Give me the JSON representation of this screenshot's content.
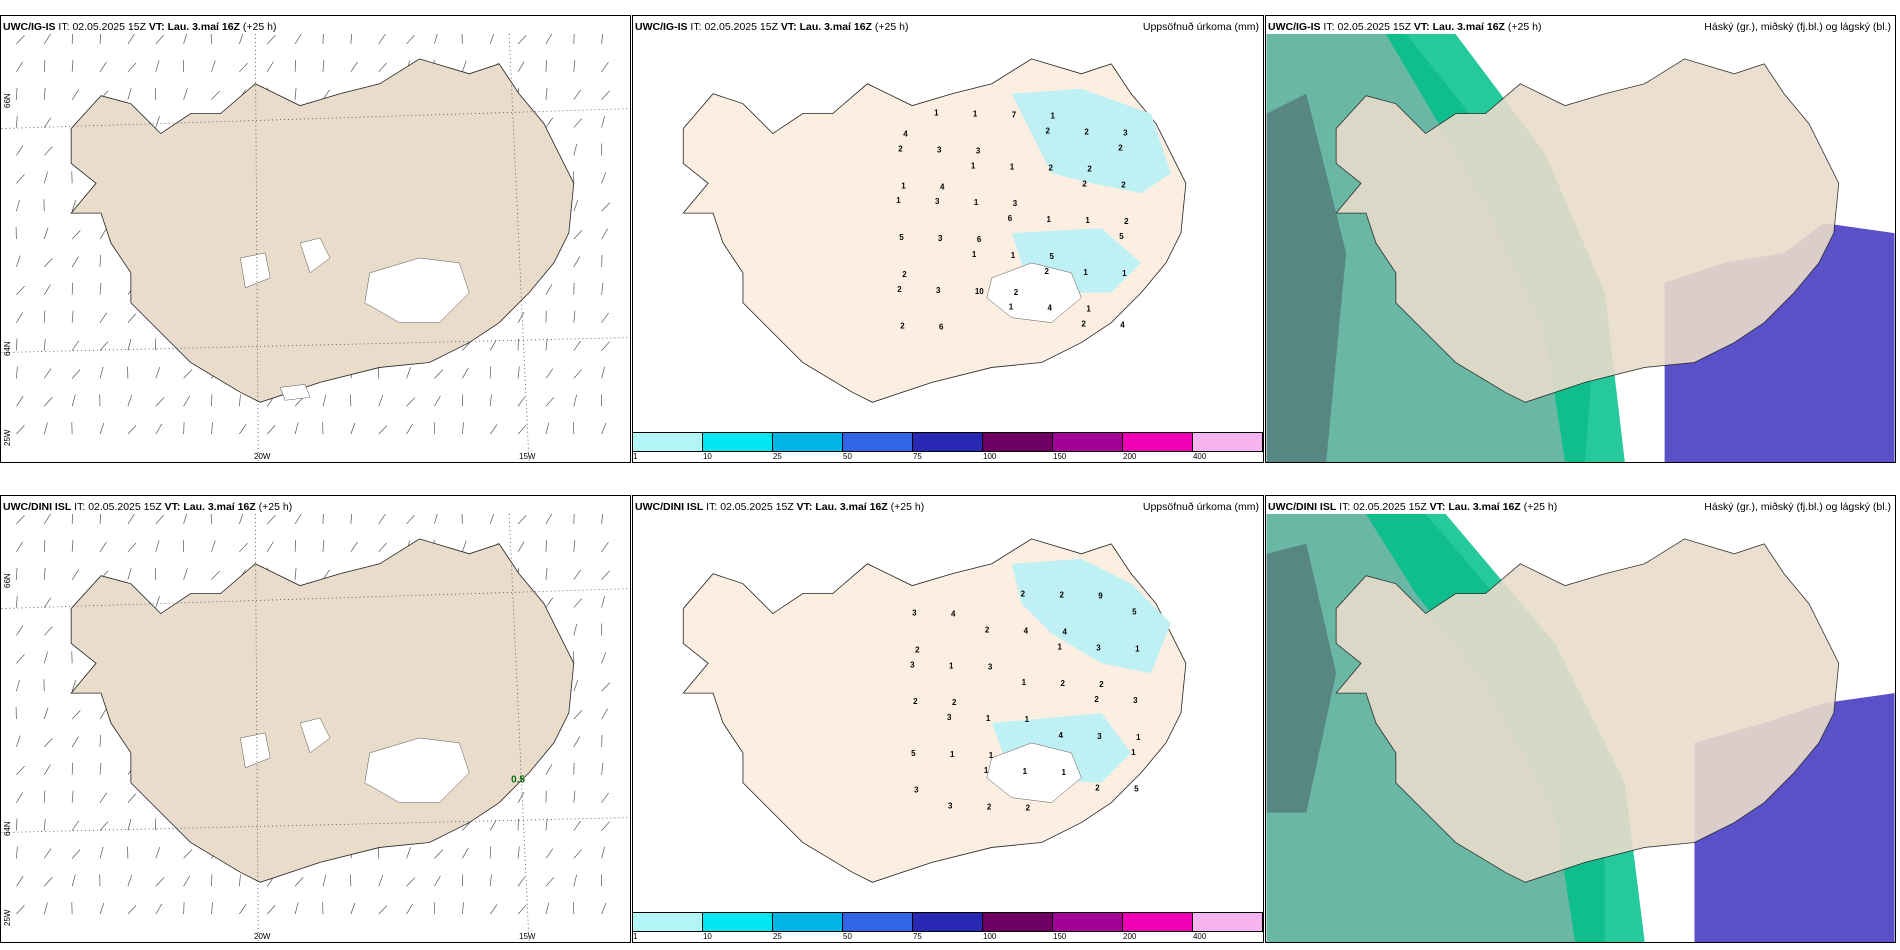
{
  "panels": {
    "top_left": {
      "model": "UWC/IG-IS",
      "it_label": "IT:",
      "it": "02.05.2025 15Z",
      "vt_label": "VT:",
      "vt": "Lau. 3.maí 16Z",
      "lead": "(+25 h)"
    },
    "top_center": {
      "model": "UWC/IG-IS",
      "it_label": "IT:",
      "it": "02.05.2025 15Z",
      "vt_label": "VT:",
      "vt": "Lau. 3.maí 16Z",
      "lead": "(+25 h)",
      "right_title": "Uppsöfnuð úrkoma (mm)"
    },
    "top_right": {
      "model": "UWC/IG-IS",
      "it_label": "IT:",
      "it": "02.05.2025 15Z",
      "vt_label": "VT:",
      "vt": "Lau. 3.maí 16Z",
      "lead": "(+25 h)",
      "right_title": "Háský (gr.), miðský (fj.bl.) og lágský (bl.)"
    },
    "bottom_left": {
      "model": "UWC/DINI ISL",
      "it_label": "IT:",
      "it": "02.05.2025 15Z",
      "vt_label": "VT:",
      "vt": "Lau. 3.maí 16Z",
      "lead": "(+25 h)",
      "gust_label": "0.5"
    },
    "bottom_center": {
      "model": "UWC/DINI ISL",
      "it_label": "IT:",
      "it": "02.05.2025 15Z",
      "vt_label": "VT:",
      "vt": "Lau. 3.maí 16Z",
      "lead": "(+25 h)",
      "right_title": "Uppsöfnuð úrkoma (mm)"
    },
    "bottom_right": {
      "model": "UWC/DINI ISL",
      "it_label": "IT:",
      "it": "02.05.2025 15Z",
      "vt_label": "VT:",
      "vt": "Lau. 3.maí 16Z",
      "lead": "(+25 h)",
      "right_title": "Háský (gr.), miðský (fj.bl.) og lágský (bl.)"
    }
  },
  "axes": {
    "lat_66": "66N",
    "lat_64": "64N",
    "lon_25": "25W",
    "lon_20": "20W",
    "lon_15": "15W"
  },
  "precip_scale": {
    "ticks": [
      "1",
      "10",
      "25",
      "50",
      "75",
      "100",
      "150",
      "200",
      "400"
    ],
    "colors": [
      "#b3f5f5",
      "#00e6f0",
      "#00b4e6",
      "#3264e6",
      "#2828b4",
      "#6e0064",
      "#a00096",
      "#f000b4",
      "#f5b4f0"
    ]
  },
  "precip_top": [
    "4",
    "4",
    "6",
    "2",
    "1",
    "2",
    "2",
    "2",
    "6",
    "3",
    "3",
    "5",
    "1",
    "3",
    "1",
    "3",
    "10",
    "7",
    "2",
    "1",
    "1",
    "2",
    "3",
    "1",
    "1",
    "4",
    "2",
    "2",
    "5",
    "3",
    "1",
    "1",
    "1",
    "1",
    "4",
    "2",
    "3",
    "1",
    "1",
    "2",
    "2",
    "5",
    "2",
    "1",
    "1",
    "6",
    "2",
    "2",
    "2",
    "1"
  ],
  "precip_bottom": [
    "2",
    "2",
    "1",
    "2",
    "4",
    "2",
    "1",
    "3",
    "4",
    "3",
    "1",
    "1",
    "9",
    "1",
    "2",
    "1",
    "2",
    "4",
    "2",
    "3",
    "5",
    "3",
    "1",
    "1",
    "1",
    "2",
    "3",
    "3",
    "5",
    "3",
    "2",
    "1",
    "4",
    "2",
    "5",
    "3",
    "3",
    "1",
    "2",
    "1",
    "2",
    "1"
  ],
  "colors": {
    "land": "#e9dccb",
    "land_center": "#fcefe2",
    "precip": "#bff1f4",
    "cloud_high": "#6ab7a4",
    "cloud_mid": "#00c08a",
    "cloud_low": "#5a50c8",
    "cloud_grey": "#9fb8b0"
  }
}
